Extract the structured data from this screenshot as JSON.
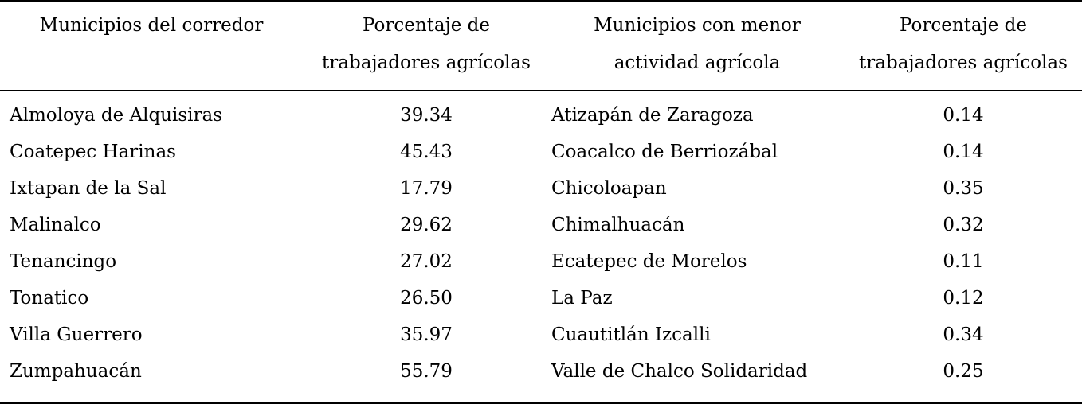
{
  "table": {
    "headers": [
      {
        "line1": "Municipios del corredor",
        "line2": ""
      },
      {
        "line1": "Porcentaje de",
        "line2": "trabajadores agrícolas"
      },
      {
        "line1": "Municipios con menor",
        "line2": "actividad agrícola"
      },
      {
        "line1": "Porcentaje de",
        "line2": "trabajadores agrícolas"
      }
    ],
    "rows": [
      {
        "corridor": "Almoloya de Alquisiras",
        "corridor_pct": "39.34",
        "lowest": "Atizapán de Zaragoza",
        "lowest_pct": "0.14"
      },
      {
        "corridor": "Coatepec Harinas",
        "corridor_pct": "45.43",
        "lowest": "Coacalco de Berriozábal",
        "lowest_pct": "0.14"
      },
      {
        "corridor": "Ixtapan de la Sal",
        "corridor_pct": "17.79",
        "lowest": "Chicoloapan",
        "lowest_pct": "0.35"
      },
      {
        "corridor": "Malinalco",
        "corridor_pct": "29.62",
        "lowest": "Chimalhuacán",
        "lowest_pct": "0.32"
      },
      {
        "corridor": "Tenancingo",
        "corridor_pct": "27.02",
        "lowest": "Ecatepec de Morelos",
        "lowest_pct": "0.11"
      },
      {
        "corridor": "Tonatico",
        "corridor_pct": "26.50",
        "lowest": "La Paz",
        "lowest_pct": "0.12"
      },
      {
        "corridor": "Villa Guerrero",
        "corridor_pct": "35.97",
        "lowest": "Cuautitlán Izcalli",
        "lowest_pct": "0.34"
      },
      {
        "corridor": "Zumpahuacán",
        "corridor_pct": "55.79",
        "lowest": "Valle de Chalco Solidaridad",
        "lowest_pct": "0.25"
      }
    ]
  },
  "colors": {
    "text": "#000000",
    "background": "#ffffff",
    "rule": "#000000"
  },
  "chart_data": {
    "type": "table",
    "columns": [
      "Municipios del corredor",
      "Porcentaje de trabajadores agrícolas",
      "Municipios con menor actividad agrícola",
      "Porcentaje de trabajadores agrícolas"
    ],
    "rows": [
      [
        "Almoloya de Alquisiras",
        39.34,
        "Atizapán de Zaragoza",
        0.14
      ],
      [
        "Coatepec Harinas",
        45.43,
        "Coacalco de Berriozábal",
        0.14
      ],
      [
        "Ixtapan de la Sal",
        17.79,
        "Chicoloapan",
        0.35
      ],
      [
        "Malinalco",
        29.62,
        "Chimalhuacán",
        0.32
      ],
      [
        "Tenancingo",
        27.02,
        "Ecatepec de Morelos",
        0.11
      ],
      [
        "Tonatico",
        26.5,
        "La Paz",
        0.12
      ],
      [
        "Villa Guerrero",
        35.97,
        "Cuautitlán Izcalli",
        0.34
      ],
      [
        "Zumpahuacán",
        55.79,
        "Valle de Chalco Solidaridad",
        0.25
      ]
    ]
  }
}
